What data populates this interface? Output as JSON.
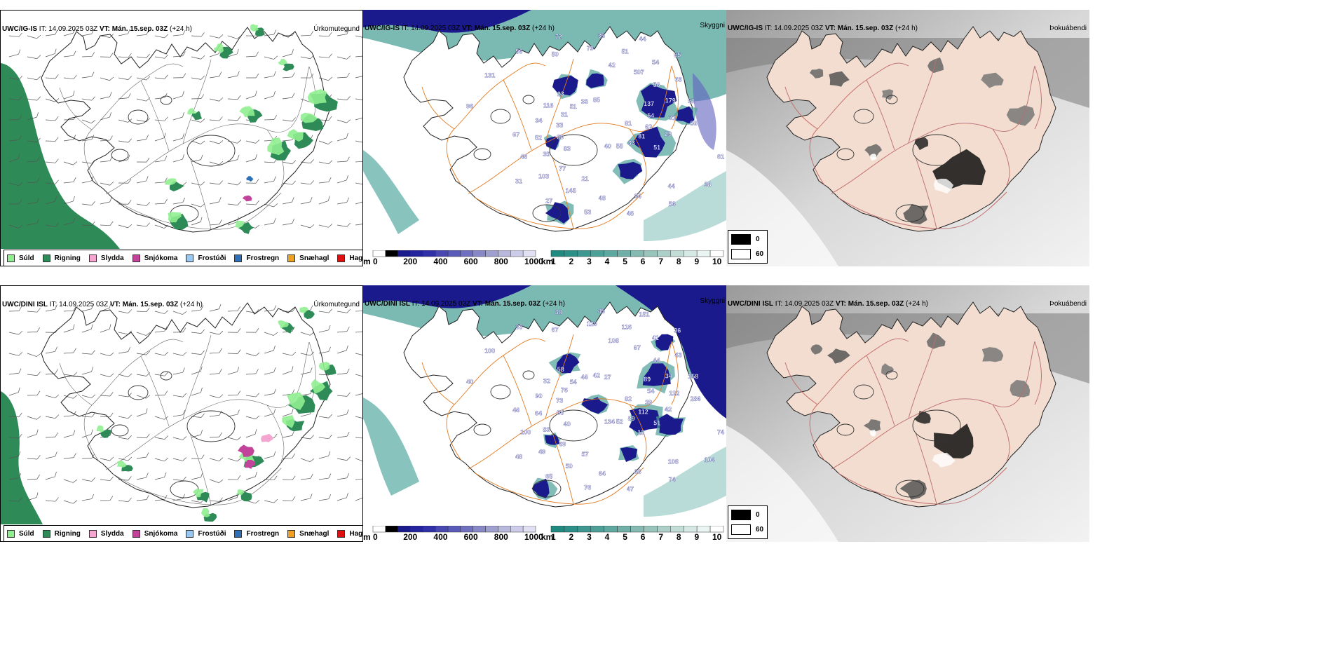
{
  "panels": {
    "ig_precip": {
      "model": "UWC/IG-IS",
      "it_label": "IT:",
      "it_value": "14.09.2025 03Z",
      "vt_label": "VT:",
      "vt_value": "Mán. 15.sep. 03Z",
      "lead": "(+24 h)",
      "corner": "Úrkomutegund"
    },
    "ig_vis": {
      "model": "UWC/IG-IS",
      "it_label": "IT:",
      "it_value": "14.09.2025 03Z",
      "vt_label": "VT:",
      "vt_value": "Mán. 15.sep. 03Z",
      "lead": "(+24 h)",
      "corner": "Skyggni"
    },
    "ig_fog": {
      "model": "UWC/IG-IS",
      "it_label": "IT:",
      "it_value": "14.09.2025 03Z",
      "vt_label": "VT:",
      "vt_value": "Mán. 15.sep. 03Z",
      "lead": "(+24 h)",
      "corner": "Þokuábendi"
    },
    "dini_precip": {
      "model": "UWC/DINI ISL",
      "it_label": "IT:",
      "it_value": "14.09.2025 03Z",
      "vt_label": "VT:",
      "vt_value": "Mán. 15.sep. 03Z",
      "lead": "(+24 h)",
      "corner": "Úrkomutegund"
    },
    "dini_vis": {
      "model": "UWC/DINI ISL",
      "it_label": "IT:",
      "it_value": "14.09.2025 03Z",
      "vt_label": "VT:",
      "vt_value": "Mán. 15.sep. 03Z",
      "lead": "(+24 h)",
      "corner": "Skyggni"
    },
    "dini_fog": {
      "model": "UWC/DINI ISL",
      "it_label": "IT:",
      "it_value": "14.09.2025 03Z",
      "vt_label": "VT:",
      "vt_value": "Mán. 15.sep. 03Z",
      "lead": "(+24 h)",
      "corner": "Þokuábendi"
    }
  },
  "precip_legend": [
    {
      "label": "Súld",
      "color": "#90ee90"
    },
    {
      "label": "Rigning",
      "color": "#2e8b57"
    },
    {
      "label": "Slydda",
      "color": "#f4a6d0"
    },
    {
      "label": "Snjókoma",
      "color": "#c2449a"
    },
    {
      "label": "Frostúði",
      "color": "#9ac8f0"
    },
    {
      "label": "Frostregn",
      "color": "#2f6fb8"
    },
    {
      "label": "Snæhagl",
      "color": "#f0a020"
    },
    {
      "label": "Haglél",
      "color": "#e01010"
    }
  ],
  "height_scale": {
    "unit": "m",
    "ticks": [
      "0",
      "200",
      "400",
      "600",
      "800",
      "1000"
    ]
  },
  "vis_scale": {
    "unit": "km",
    "ticks": [
      "1",
      "2",
      "3",
      "4",
      "5",
      "6",
      "7",
      "8",
      "9",
      "10"
    ]
  },
  "fog_legend": [
    {
      "label": "0",
      "color": "#000000"
    },
    {
      "label": "60",
      "color": "#ffffff"
    }
  ],
  "cloud_base_labels": {
    "ig": [
      "81",
      "83",
      "42",
      "44",
      "96",
      "137",
      "21",
      "50",
      "61",
      "89",
      "507",
      "94",
      "131",
      "54",
      "77",
      "79",
      "38",
      "33",
      "56",
      "48",
      "56",
      "62",
      "35",
      "51",
      "56",
      "31",
      "179",
      "145",
      "72",
      "81",
      "52",
      "54",
      "46",
      "51",
      "31",
      "103",
      "35",
      "33",
      "34",
      "63",
      "53",
      "33",
      "29",
      "46",
      "44",
      "55",
      "116",
      "51",
      "27",
      "85",
      "51",
      "67",
      "55",
      "40",
      "23",
      "56",
      "31"
    ],
    "dini": [
      "82",
      "40",
      "108",
      "108",
      "40",
      "89",
      "57",
      "67",
      "74",
      "65",
      "67",
      "66",
      "100",
      "54",
      "69",
      "120",
      "104",
      "73",
      "44",
      "64",
      "33",
      "39",
      "83",
      "116",
      "74",
      "76",
      "34",
      "50",
      "38",
      "112",
      "64",
      "41",
      "47",
      "54",
      "122",
      "49",
      "45",
      "89",
      "90",
      "43",
      "76",
      "46",
      "42",
      "100",
      "151",
      "52",
      "32",
      "158",
      "65",
      "42",
      "51",
      "46",
      "36",
      "134",
      "58",
      "286",
      "48",
      "27",
      "13"
    ]
  }
}
